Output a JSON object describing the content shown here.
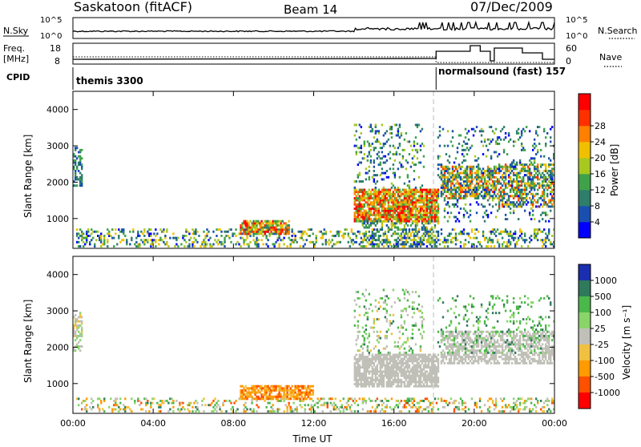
{
  "header": {
    "station": "Saskatoon (fitACF)",
    "beam": "Beam 14",
    "date": "07/Dec/2009"
  },
  "noise_panel": {
    "left_label": "N.Sky",
    "left_ticks": [
      "10^5",
      "10^0"
    ],
    "right_ticks": [
      "10^5",
      "10^0"
    ],
    "right_label": "N.Search"
  },
  "freq_panel": {
    "left_label_1": "Freq.",
    "left_label_2": "[MHz]",
    "left_ticks": [
      "18",
      "8"
    ],
    "right_ticks": [
      "60",
      "0"
    ],
    "right_label": "Nave"
  },
  "cpid": {
    "label": "CPID",
    "segments": [
      {
        "name": "themis 3300",
        "start_hour": 0
      },
      {
        "name": "normalsound (fast) 157",
        "start_hour": 18.1
      }
    ]
  },
  "colors": {
    "power": [
      "#0000ff",
      "#1a4fb0",
      "#2f7d6b",
      "#3fa24a",
      "#a8c820",
      "#f0c000",
      "#ff8000",
      "#ff3000",
      "#ff0000"
    ],
    "velocity": [
      "#1a2eb0",
      "#2f7a5c",
      "#4bb84b",
      "#8ad46a",
      "#c0c0b8",
      "#f0c040",
      "#ff9a00",
      "#ff5000",
      "#ff0000"
    ]
  },
  "chart_data": [
    {
      "type": "heatmap",
      "title": "Power",
      "xlabel": "",
      "ylabel": "Slant Range [km]",
      "x_ticks": [
        "00:00",
        "04:00",
        "08:00",
        "12:00",
        "16:00",
        "20:00",
        "00:00"
      ],
      "xlim": [
        0,
        24
      ],
      "y_ticks": [
        "1000",
        "2000",
        "3000",
        "4000"
      ],
      "ylim": [
        180,
        4500
      ],
      "colorbar": {
        "label": "Power [dB]",
        "ticks": [
          "4",
          "8",
          "12",
          "16",
          "20",
          "24",
          "28"
        ],
        "range": [
          0,
          30
        ]
      },
      "scatter_regions": [
        {
          "t": [
            0.0,
            0.5
          ],
          "r": [
            1850,
            2950
          ],
          "v": [
            3,
            12
          ],
          "density": 0.55
        },
        {
          "t": [
            0.2,
            24.0
          ],
          "r": [
            180,
            700
          ],
          "v": [
            2,
            20
          ],
          "density": 0.28
        },
        {
          "t": [
            8.3,
            10.8
          ],
          "r": [
            500,
            950
          ],
          "v": [
            8,
            30
          ],
          "density": 0.75
        },
        {
          "t": [
            14.0,
            18.2
          ],
          "r": [
            900,
            1800
          ],
          "v": [
            10,
            30
          ],
          "density": 0.85
        },
        {
          "t": [
            14.0,
            17.5
          ],
          "r": [
            1800,
            3600
          ],
          "v": [
            2,
            16
          ],
          "density": 0.18
        },
        {
          "t": [
            14.3,
            18.2
          ],
          "r": [
            180,
            900
          ],
          "v": [
            3,
            18
          ],
          "density": 0.35
        },
        {
          "t": [
            18.3,
            21.2
          ],
          "r": [
            1500,
            2400
          ],
          "v": [
            3,
            26
          ],
          "density": 0.65
        },
        {
          "t": [
            21.2,
            24.0
          ],
          "r": [
            1300,
            2500
          ],
          "v": [
            3,
            26
          ],
          "density": 0.5
        },
        {
          "t": [
            18.2,
            24.0
          ],
          "r": [
            900,
            3500
          ],
          "v": [
            2,
            14
          ],
          "density": 0.12
        }
      ]
    },
    {
      "type": "heatmap",
      "title": "Velocity",
      "xlabel": "Time UT",
      "ylabel": "Slant Range [km]",
      "x_ticks": [
        "00:00",
        "04:00",
        "08:00",
        "12:00",
        "16:00",
        "20:00",
        "00:00"
      ],
      "xlim": [
        0,
        24
      ],
      "y_ticks": [
        "1000",
        "2000",
        "3000",
        "4000"
      ],
      "ylim": [
        180,
        4500
      ],
      "colorbar": {
        "label": "Velocity [m s⁻¹]",
        "ticks": [
          "1000",
          "500",
          "100",
          "25",
          "-25",
          "-100",
          "-500",
          "-1000"
        ]
      },
      "scatter_regions": [
        {
          "t": [
            0.0,
            0.5
          ],
          "r": [
            1850,
            2950
          ],
          "v": [
            3,
            5
          ],
          "density": 0.5
        },
        {
          "t": [
            0.2,
            24.0
          ],
          "r": [
            180,
            600
          ],
          "v": [
            1,
            7
          ],
          "density": 0.25
        },
        {
          "t": [
            8.3,
            12.0
          ],
          "r": [
            500,
            950
          ],
          "v": [
            5,
            7
          ],
          "density": 0.7
        },
        {
          "t": [
            14.0,
            18.2
          ],
          "r": [
            900,
            1800
          ],
          "v": [
            4,
            4
          ],
          "density": 0.8
        },
        {
          "t": [
            14.0,
            17.5
          ],
          "r": [
            1800,
            3600
          ],
          "v": [
            1,
            5
          ],
          "density": 0.15
        },
        {
          "t": [
            18.3,
            24.0
          ],
          "r": [
            1500,
            2400
          ],
          "v": [
            4,
            4
          ],
          "density": 0.6
        },
        {
          "t": [
            18.2,
            24.0
          ],
          "r": [
            1800,
            3400
          ],
          "v": [
            1,
            3
          ],
          "density": 0.12
        }
      ]
    }
  ]
}
